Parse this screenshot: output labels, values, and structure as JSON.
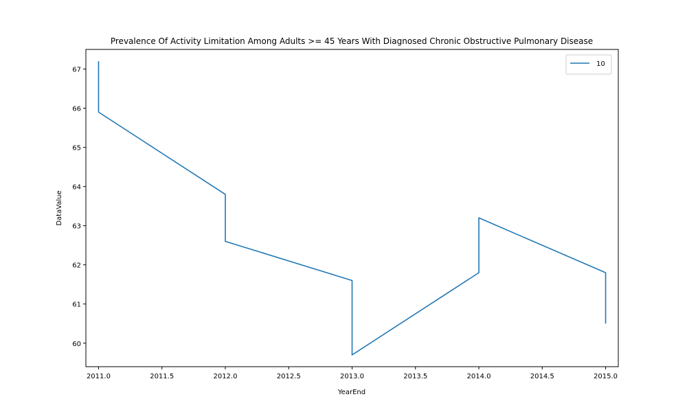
{
  "chart_data": {
    "type": "line",
    "title": "Prevalence Of Activity Limitation Among Adults >= 45 Years With Diagnosed Chronic Obstructive Pulmonary Disease",
    "xlabel": "YearEnd",
    "ylabel": "DataValue",
    "xlim": [
      2010.9,
      2015.1
    ],
    "ylim": [
      59.4,
      67.5
    ],
    "xticks": [
      2011.0,
      2011.5,
      2012.0,
      2012.5,
      2013.0,
      2013.5,
      2014.0,
      2014.5,
      2015.0
    ],
    "xtick_labels": [
      "2011.0",
      "2011.5",
      "2012.0",
      "2012.5",
      "2013.0",
      "2013.5",
      "2014.0",
      "2014.5",
      "2015.0"
    ],
    "yticks": [
      60,
      61,
      62,
      63,
      64,
      65,
      66,
      67
    ],
    "ytick_labels": [
      "60",
      "61",
      "62",
      "63",
      "64",
      "65",
      "66",
      "67"
    ],
    "grid": false,
    "legend_position": "top-right",
    "series": [
      {
        "name": "10",
        "color": "#1f77b4",
        "x": [
          2011,
          2011,
          2012,
          2012,
          2013,
          2013,
          2014,
          2014,
          2015,
          2015
        ],
        "y": [
          67.2,
          65.9,
          63.8,
          62.6,
          61.6,
          59.7,
          61.8,
          63.2,
          61.8,
          60.5
        ]
      }
    ]
  }
}
